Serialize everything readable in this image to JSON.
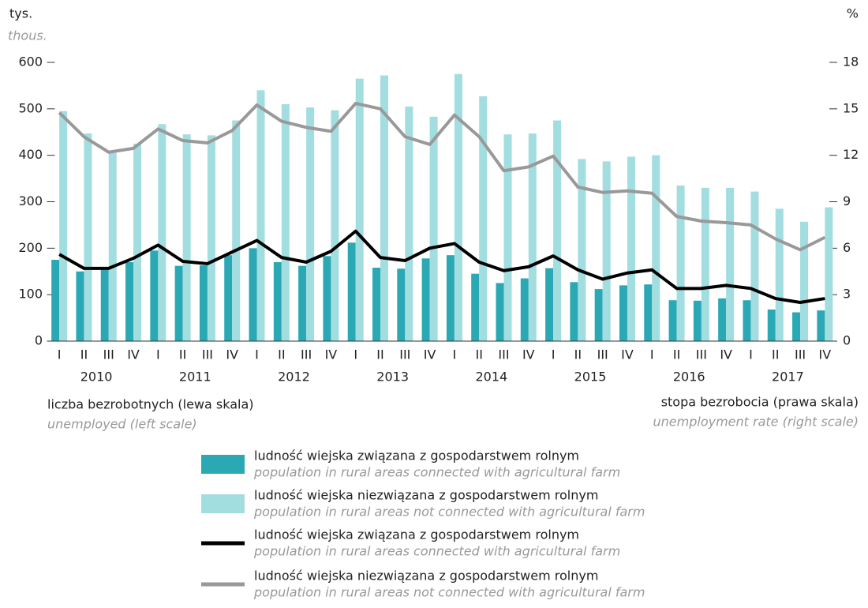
{
  "chart_data": {
    "type": "bar",
    "left_unit": "tys.",
    "left_unit_en": "thous.",
    "right_unit": "%",
    "left_axis_label": "liczba bezrobotnych (lewa skala)",
    "left_axis_label_en": "unemployed (left scale)",
    "right_axis_label": "stopa bezrobocia (prawa skala)",
    "right_axis_label_en": "unemployment rate (right scale)",
    "categories": [
      "I",
      "II",
      "III",
      "IV",
      "I",
      "II",
      "III",
      "IV",
      "I",
      "II",
      "III",
      "IV",
      "I",
      "II",
      "III",
      "IV",
      "I",
      "II",
      "III",
      "IV",
      "I",
      "II",
      "III",
      "IV",
      "I",
      "II",
      "III",
      "IV",
      "I",
      "II",
      "III",
      "IV"
    ],
    "years": [
      "2010",
      "2011",
      "2012",
      "2013",
      "2014",
      "2015",
      "2016",
      "2017"
    ],
    "ylim": [
      0,
      600
    ],
    "yticks": [
      0,
      100,
      200,
      300,
      400,
      500,
      600
    ],
    "y2lim": [
      0,
      18
    ],
    "y2ticks": [
      0,
      3,
      6,
      9,
      12,
      15,
      18
    ],
    "series": [
      {
        "name": "ludność wiejska związana z gospodarstwem rolnym",
        "name_en": "population in rural areas connected with agricultural farm",
        "type": "bar",
        "color": "#2aa9b5",
        "values": [
          175,
          150,
          155,
          170,
          195,
          162,
          163,
          185,
          200,
          170,
          162,
          183,
          212,
          158,
          156,
          178,
          185,
          145,
          125,
          135,
          157,
          127,
          112,
          120,
          122,
          88,
          87,
          92,
          88,
          68,
          62,
          66
        ]
      },
      {
        "name": "ludność wiejska niezwiązana z gospodarstwem rolnym",
        "name_en": "population in rural areas not connected with agricultural farm",
        "type": "bar",
        "color": "#a2dde0",
        "values": [
          495,
          447,
          405,
          425,
          467,
          445,
          443,
          475,
          540,
          510,
          503,
          497,
          565,
          572,
          505,
          483,
          575,
          527,
          445,
          447,
          475,
          392,
          387,
          397,
          400,
          335,
          330,
          330,
          322,
          285,
          257,
          288
        ]
      },
      {
        "name": "ludność wiejska związana z gospodarstwem rolnym",
        "name_en": "population in rural areas connected with agricultural farm",
        "type": "line",
        "axis": "y2",
        "color": "#000000",
        "values": [
          5.6,
          4.7,
          4.7,
          5.35,
          6.2,
          5.15,
          5.0,
          5.75,
          6.5,
          5.4,
          5.1,
          5.8,
          7.1,
          5.4,
          5.2,
          6.0,
          6.3,
          5.1,
          4.55,
          4.8,
          5.5,
          4.6,
          4.0,
          4.4,
          4.6,
          3.4,
          3.4,
          3.6,
          3.4,
          2.75,
          2.5,
          2.75
        ]
      },
      {
        "name": "ludność wiejska niezwiązana z gospodarstwem rolnym",
        "name_en": "population in rural areas not connected with agricultural farm",
        "type": "line",
        "axis": "y2",
        "color": "#999999",
        "values": [
          14.75,
          13.2,
          12.2,
          12.45,
          13.7,
          12.95,
          12.8,
          13.6,
          15.25,
          14.2,
          13.8,
          13.55,
          15.35,
          15.0,
          13.2,
          12.7,
          14.6,
          13.2,
          11.0,
          11.25,
          11.95,
          9.95,
          9.6,
          9.7,
          9.55,
          8.05,
          7.75,
          7.65,
          7.5,
          6.6,
          5.9,
          6.7
        ]
      }
    ]
  }
}
